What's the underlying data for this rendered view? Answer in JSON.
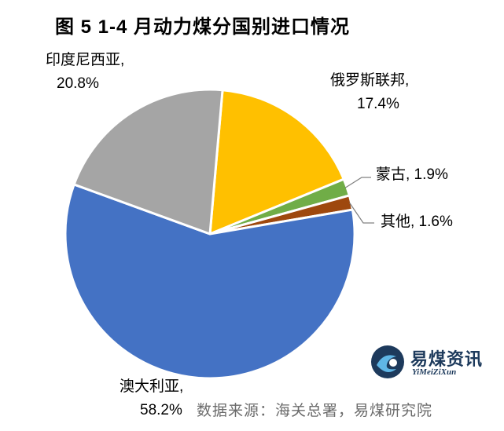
{
  "title": "图 5  1-4 月动力煤分国别进口情况",
  "source": "数据来源：海关总署，易煤研究院",
  "logo": {
    "cn": "易煤资讯",
    "en": "YiMeiZiXun"
  },
  "chart_data": {
    "type": "pie",
    "title": "图 5  1-4 月动力煤分国别进口情况",
    "unit": "%",
    "slices": [
      {
        "name": "俄罗斯联邦",
        "value": 17.4,
        "label_name": "俄罗斯联邦,",
        "label_value": "17.4%",
        "color": "#FFC000"
      },
      {
        "name": "蒙古",
        "value": 1.9,
        "label": "蒙古, 1.9%",
        "color": "#70AD47"
      },
      {
        "name": "其他",
        "value": 1.6,
        "label": "其他, 1.6%",
        "color": "#9E480E"
      },
      {
        "name": "澳大利亚",
        "value": 58.2,
        "label_name": "澳大利亚,",
        "label_value": "58.2%",
        "color": "#4472C4"
      },
      {
        "name": "印度尼西亚",
        "value": 20.8,
        "label_name": "印度尼西亚,",
        "label_value": "20.8%",
        "color": "#A5A5A5"
      }
    ]
  }
}
